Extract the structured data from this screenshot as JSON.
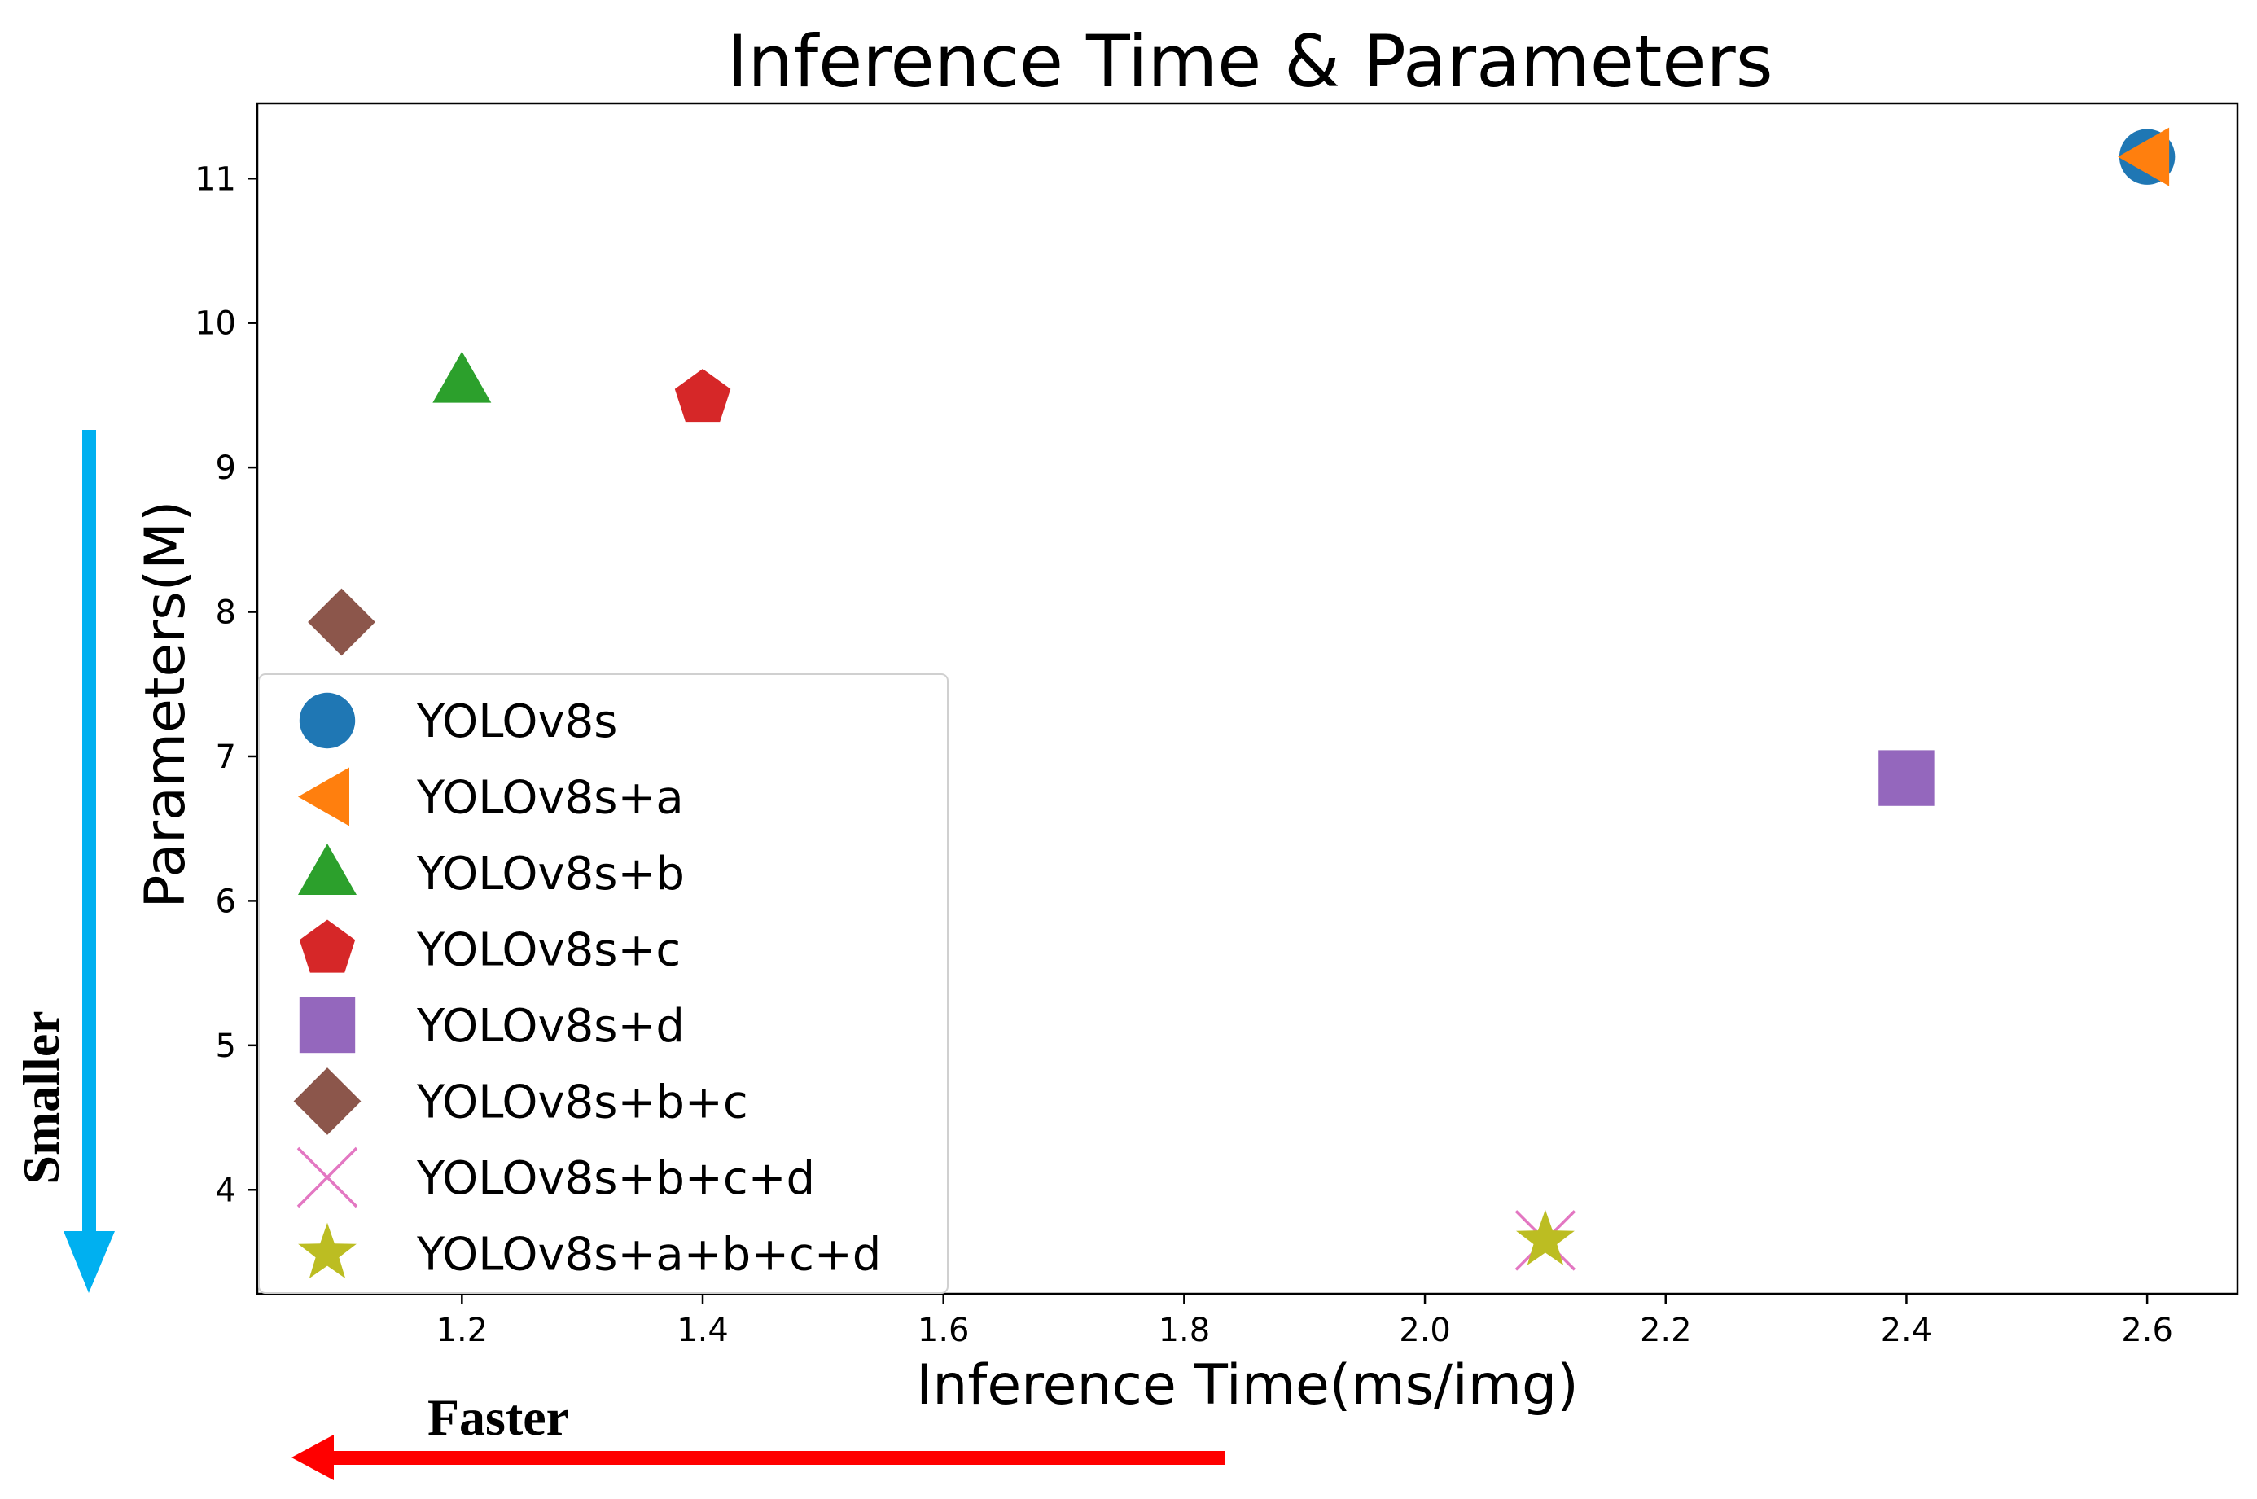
{
  "chart_data": {
    "type": "scatter",
    "title": "Inference Time & Parameters",
    "xlabel": "Inference Time(ms/img)",
    "ylabel": "Parameters(M)",
    "xlim": [
      1.03,
      2.675
    ],
    "ylim": [
      3.28,
      11.52
    ],
    "xticks": [
      "1.2",
      "1.4",
      "1.6",
      "1.8",
      "2.0",
      "2.2",
      "2.4",
      "2.6"
    ],
    "yticks": [
      "4",
      "5",
      "6",
      "7",
      "8",
      "9",
      "10",
      "11"
    ],
    "grid": false,
    "legend_position": "lower-left",
    "series": [
      {
        "name": "YOLOv8s",
        "marker": "circle",
        "color": "#1f77b4",
        "x": 2.6,
        "y": 11.15
      },
      {
        "name": "YOLOv8s+a",
        "marker": "triangle-left",
        "color": "#ff7f0e",
        "x": 2.6,
        "y": 11.15
      },
      {
        "name": "YOLOv8s+b",
        "marker": "triangle-up",
        "color": "#2ca02c",
        "x": 1.2,
        "y": 9.6
      },
      {
        "name": "YOLOv8s+c",
        "marker": "pentagon",
        "color": "#d62728",
        "x": 1.4,
        "y": 9.48
      },
      {
        "name": "YOLOv8s+d",
        "marker": "square",
        "color": "#9467bd",
        "x": 2.4,
        "y": 6.85
      },
      {
        "name": "YOLOv8s+b+c",
        "marker": "diamond",
        "color": "#8c564b",
        "x": 1.1,
        "y": 7.93
      },
      {
        "name": "YOLOv8s+b+c+d",
        "marker": "x",
        "color": "#e377c2",
        "x": 2.1,
        "y": 3.65
      },
      {
        "name": "YOLOv8s+a+b+c+d",
        "marker": "star",
        "color": "#bcbd22",
        "x": 2.1,
        "y": 3.65
      }
    ],
    "annotations": [
      {
        "text": "Smaller",
        "arrow_direction": "down",
        "color": "#00b0f0"
      },
      {
        "text": "Faster",
        "arrow_direction": "left",
        "color": "#ff0000"
      }
    ]
  }
}
